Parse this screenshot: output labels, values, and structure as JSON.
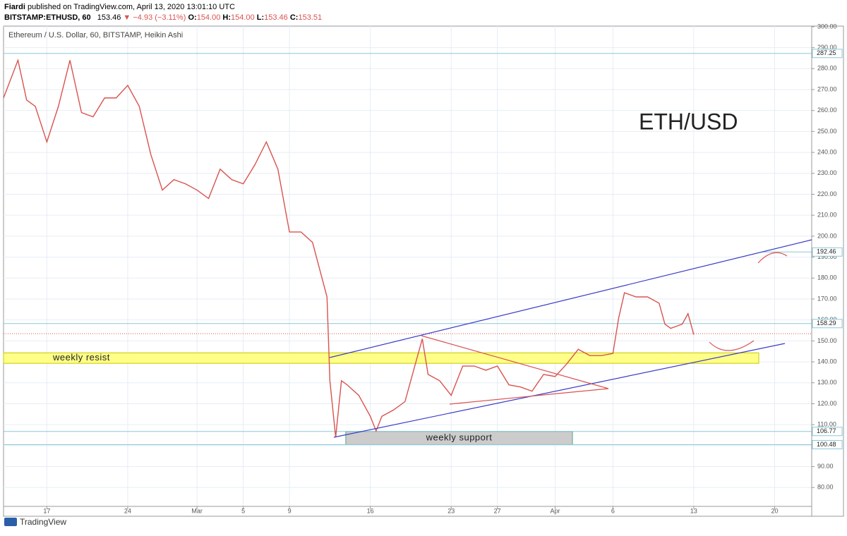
{
  "header": {
    "author": "Fiardi",
    "published": "published on TradingView.com, April 13, 2020 13:01:10 UTC",
    "symbol": "BITSTAMP:ETHUSD, 60",
    "last": "153.46",
    "change": "▼ −4.93 (−3.11%)",
    "ohlc": [
      "O:",
      "154.00",
      "H:",
      "154.00",
      "L:",
      "153.46",
      "C:",
      "153.51"
    ]
  },
  "footer": {
    "brand": "TradingView"
  },
  "chart_data": {
    "type": "line",
    "title": "Ethereum / U.S. Dollar, 60, BITSTAMP, Heikin Ashi",
    "annotation": "ETH/USD",
    "x": [
      "2020-02-13T06:00Z",
      "2020-02-14T12:00Z",
      "2020-02-15T06:00Z",
      "2020-02-16T00:00Z",
      "2020-02-17T00:00Z",
      "2020-02-18T00:00Z",
      "2020-02-19T00:00Z",
      "2020-02-20T00:00Z",
      "2020-02-21T00:00Z",
      "2020-02-22T00:00Z",
      "2020-02-23T00:00Z",
      "2020-02-24T00:00Z",
      "2020-02-25T00:00Z",
      "2020-02-26T00:00Z",
      "2020-02-27T00:00Z",
      "2020-02-28T00:00Z",
      "2020-02-29T00:00Z",
      "2020-03-01T00:00Z",
      "2020-03-02T00:00Z",
      "2020-03-03T00:00Z",
      "2020-03-04T00:00Z",
      "2020-03-05T00:00Z",
      "2020-03-06T00:00Z",
      "2020-03-07T00:00Z",
      "2020-03-08T00:00Z",
      "2020-03-09T00:00Z",
      "2020-03-10T00:00Z",
      "2020-03-11T00:00Z",
      "2020-03-12T06:00Z",
      "2020-03-12T12:00Z",
      "2020-03-13T00:00Z",
      "2020-03-13T12:00Z",
      "2020-03-14T00:00Z",
      "2020-03-15T00:00Z",
      "2020-03-16T00:00Z",
      "2020-03-16T12:00Z",
      "2020-03-17T00:00Z",
      "2020-03-18T00:00Z",
      "2020-03-19T00:00Z",
      "2020-03-20T00:00Z",
      "2020-03-20T12:00Z",
      "2020-03-21T00:00Z",
      "2020-03-22T00:00Z",
      "2020-03-23T00:00Z",
      "2020-03-24T00:00Z",
      "2020-03-25T00:00Z",
      "2020-03-26T00:00Z",
      "2020-03-27T00:00Z",
      "2020-03-28T00:00Z",
      "2020-03-29T00:00Z",
      "2020-03-30T00:00Z",
      "2020-03-31T00:00Z",
      "2020-04-01T00:00Z",
      "2020-04-02T00:00Z",
      "2020-04-03T00:00Z",
      "2020-04-04T00:00Z",
      "2020-04-05T00:00Z",
      "2020-04-06T00:00Z",
      "2020-04-06T12:00Z",
      "2020-04-07T00:00Z",
      "2020-04-08T00:00Z",
      "2020-04-09T00:00Z",
      "2020-04-10T00:00Z",
      "2020-04-10T12:00Z",
      "2020-04-11T00:00Z",
      "2020-04-12T00:00Z",
      "2020-04-12T12:00Z",
      "2020-04-13T00:00Z"
    ],
    "series": [
      {
        "name": "ETHUSD",
        "color": "#d9534f",
        "values": [
          266,
          284,
          265,
          262,
          245,
          262,
          284,
          259,
          257,
          266,
          266,
          272,
          262,
          239,
          222,
          227,
          225,
          222,
          218,
          232,
          227,
          225,
          234,
          245,
          232,
          202,
          202,
          197,
          171,
          131,
          104,
          131,
          129,
          124,
          114,
          107,
          114,
          117,
          121,
          141,
          151,
          134,
          131,
          124,
          138,
          138,
          136,
          138,
          129,
          128,
          126,
          134,
          133,
          139,
          146,
          143,
          143,
          144,
          161,
          173,
          171,
          171,
          168,
          158,
          156,
          158,
          163,
          153
        ]
      }
    ],
    "xlim": [
      "2020-02-13T06:00Z",
      "2020-04-23T05:00Z"
    ],
    "ylim": [
      71,
      300.3
    ],
    "xticks": [
      {
        "value": "2020-02-17T00:00Z",
        "label": "17"
      },
      {
        "value": "2020-02-24T00:00Z",
        "label": "24"
      },
      {
        "value": "2020-03-01T00:00Z",
        "label": "Mar"
      },
      {
        "value": "2020-03-05T00:00Z",
        "label": "5"
      },
      {
        "value": "2020-03-09T00:00Z",
        "label": "9"
      },
      {
        "value": "2020-03-16T00:00Z",
        "label": "16"
      },
      {
        "value": "2020-03-23T00:00Z",
        "label": "23"
      },
      {
        "value": "2020-03-27T00:00Z",
        "label": "27"
      },
      {
        "value": "2020-04-01T00:00Z",
        "label": "Apr"
      },
      {
        "value": "2020-04-06T00:00Z",
        "label": "6"
      },
      {
        "value": "2020-04-13T00:00Z",
        "label": "13"
      },
      {
        "value": "2020-04-20T00:00Z",
        "label": "20"
      }
    ],
    "yticks": [
      {
        "value": 80,
        "label": "80.00"
      },
      {
        "value": 90,
        "label": "90.00"
      },
      {
        "value": 100,
        "label": "100.00"
      },
      {
        "value": 110,
        "label": "110.00"
      },
      {
        "value": 120,
        "label": "120.00"
      },
      {
        "value": 130,
        "label": "130.00"
      },
      {
        "value": 140,
        "label": "140.00"
      },
      {
        "value": 150,
        "label": "150.00"
      },
      {
        "value": 160,
        "label": "160.00"
      },
      {
        "value": 170,
        "label": "170.00"
      },
      {
        "value": 180,
        "label": "180.00"
      },
      {
        "value": 190,
        "label": "190.00"
      },
      {
        "value": 200,
        "label": "200.00"
      },
      {
        "value": 210,
        "label": "210.00"
      },
      {
        "value": 220,
        "label": "220.00"
      },
      {
        "value": 230,
        "label": "230.00"
      },
      {
        "value": 240,
        "label": "240.00"
      },
      {
        "value": 250,
        "label": "250.00"
      },
      {
        "value": 260,
        "label": "260.00"
      },
      {
        "value": 270,
        "label": "270.00"
      },
      {
        "value": 280,
        "label": "280.00"
      },
      {
        "value": 290,
        "label": "290.00"
      },
      {
        "value": 300,
        "label": "300.00"
      }
    ],
    "grid": true,
    "levels": [
      287.25,
      192.46,
      158.29,
      106.77,
      100.48
    ],
    "current": 153.46,
    "zones": [
      {
        "label": "weekly resist",
        "from": 139.3,
        "to": 144.3,
        "start": "2020-02-13T06:00Z",
        "end": "2020-04-18T15:00Z",
        "color": "#ffff88",
        "border": "#c8c800"
      },
      {
        "label": "weekly support",
        "from": 100.48,
        "to": 106.77,
        "start": "2020-03-13T21:00Z",
        "end": "2020-04-02T12:00Z",
        "color": "#cccccc",
        "border": "#5aa58a"
      }
    ]
  }
}
